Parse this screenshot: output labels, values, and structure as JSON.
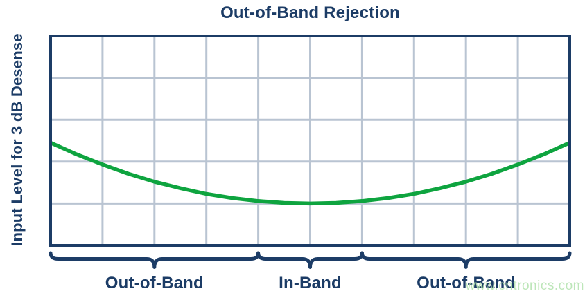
{
  "chart": {
    "title": "Out-of-Band Rejection",
    "ylabel": "Input Level for 3 dB Desense"
  },
  "watermark": {
    "text": "www.cntronics.com"
  },
  "colors": {
    "navy": "#1c3c66",
    "green": "#0ea43f",
    "grid": "#b9c4d2",
    "watermark": "#b5e3b0",
    "background": "#ffffff"
  },
  "chart_data": {
    "type": "line",
    "title": "Out-of-Band Rejection",
    "xlabel": "",
    "ylabel": "Input Level for 3 dB Desense",
    "x_axis": {
      "label": "",
      "ticks": []
    },
    "y_axis": {
      "label": "Input Level for 3 dB Desense",
      "ticks": []
    },
    "grid": {
      "visible": true,
      "columns": 10,
      "rows": 5
    },
    "legend": {
      "visible": false
    },
    "series": [
      {
        "name": "input-level-for-3db-desense",
        "color": "#0ea43f",
        "shape": "symmetric bathtub (parabola), minimum in-band, rising out-of-band",
        "x_norm": [
          0,
          0.05,
          0.1,
          0.15,
          0.2,
          0.25,
          0.3,
          0.35,
          0.4,
          0.45,
          0.5,
          0.55,
          0.6,
          0.65,
          0.7,
          0.75,
          0.8,
          0.85,
          0.9,
          0.95,
          1
        ],
        "y_norm_from_bottom": [
          0.49,
          0.435,
          0.386,
          0.342,
          0.304,
          0.273,
          0.246,
          0.226,
          0.212,
          0.203,
          0.2,
          0.203,
          0.212,
          0.226,
          0.246,
          0.273,
          0.304,
          0.342,
          0.386,
          0.435,
          0.49
        ]
      }
    ],
    "regions": [
      {
        "label": "Out-of-Band",
        "x_start": 0.0,
        "x_end": 0.4
      },
      {
        "label": "In-Band",
        "x_start": 0.4,
        "x_end": 0.6
      },
      {
        "label": "Out-of-Band",
        "x_start": 0.6,
        "x_end": 1.0
      }
    ]
  }
}
